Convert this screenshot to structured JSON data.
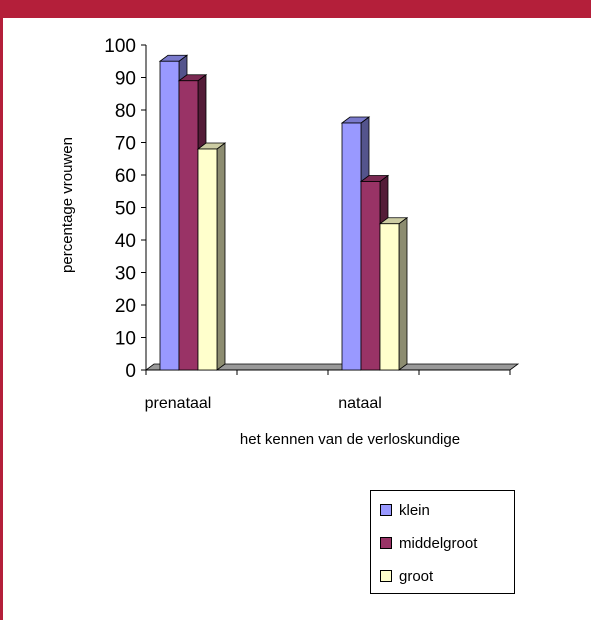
{
  "colors": {
    "frame": "#b41f3a"
  },
  "chart_data": {
    "type": "bar",
    "style": "3d-clustered",
    "categories": [
      "prenataal",
      "nataal"
    ],
    "series": [
      {
        "name": "klein",
        "values": [
          95,
          76
        ],
        "color": "#9999ff"
      },
      {
        "name": "middelgroot",
        "values": [
          89,
          58
        ],
        "color": "#993366"
      },
      {
        "name": "groot",
        "values": [
          68,
          45
        ],
        "color": "#ffffcc"
      }
    ],
    "xlabel": "het kennen van de verloskundige",
    "ylabel": "percentage vrouwen",
    "ylim": [
      0,
      100
    ],
    "yticks": [
      0,
      10,
      20,
      30,
      40,
      50,
      60,
      70,
      80,
      90,
      100
    ],
    "grid": false,
    "legend_position": "bottom-right"
  }
}
